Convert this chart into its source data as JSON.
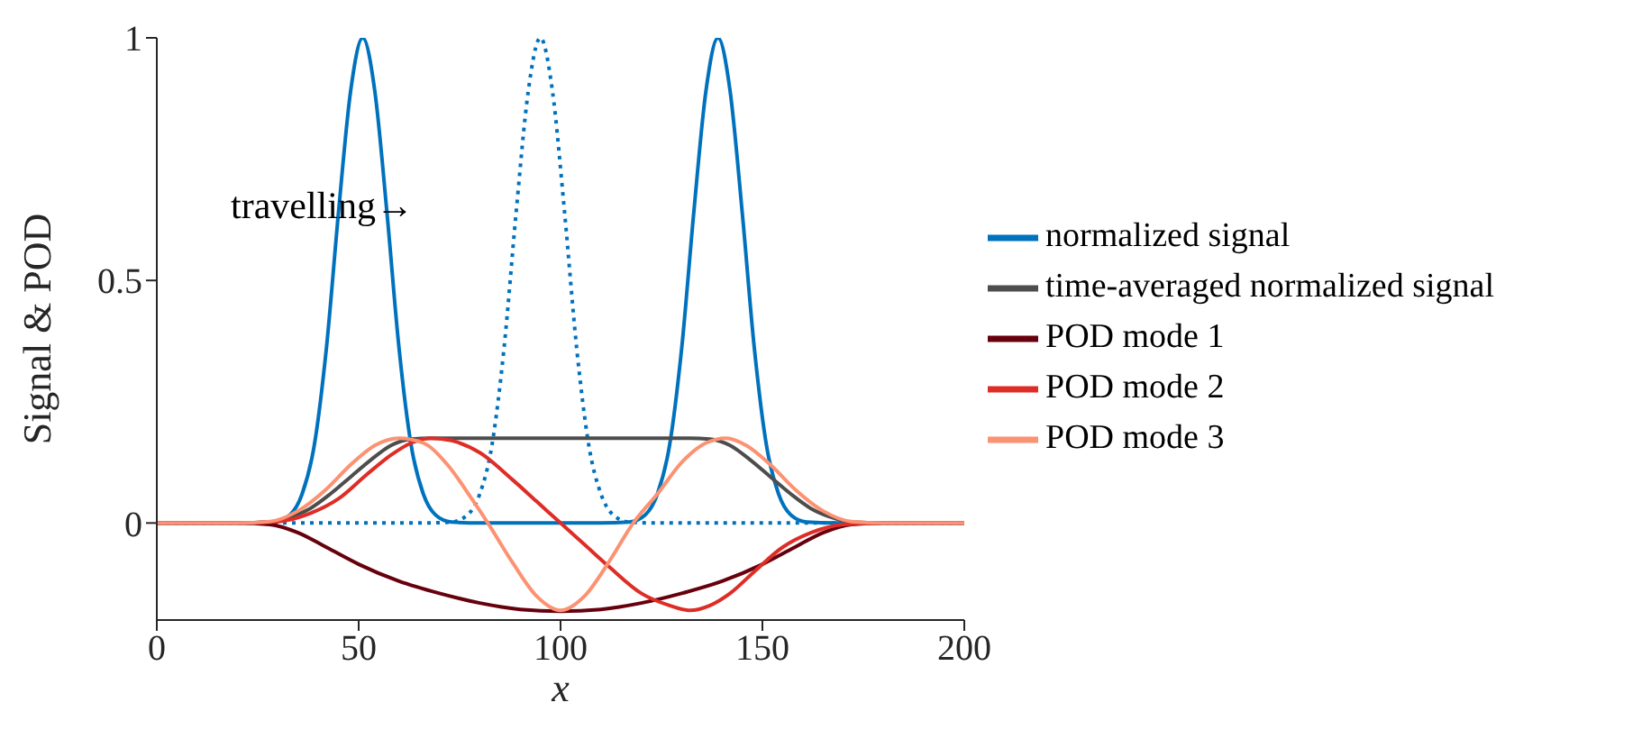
{
  "chart_data": {
    "type": "line",
    "xlabel": "x",
    "ylabel": "Signal & POD",
    "xlim": [
      0,
      200
    ],
    "xticks": [
      0,
      50,
      100,
      150,
      200
    ],
    "ylim": [
      -0.2,
      1
    ],
    "yticks": [
      0,
      0.5,
      1
    ],
    "grid": false,
    "legend": "right",
    "annotations": [
      "travelling→"
    ],
    "series": [
      {
        "name": "normalized signal",
        "color": "#0072bd",
        "x": [
          0,
          20,
          29,
          33,
          36,
          39,
          42,
          45,
          48,
          51,
          54,
          57,
          60,
          63,
          66,
          69,
          73,
          80,
          110,
          117,
          121,
          124,
          127,
          130,
          133,
          136,
          139,
          142,
          145,
          148,
          151,
          154,
          157,
          161,
          168,
          200
        ],
        "values": [
          0,
          0,
          0.002,
          0.017,
          0.06,
          0.16,
          0.36,
          0.64,
          0.89,
          1,
          0.89,
          0.64,
          0.36,
          0.16,
          0.06,
          0.017,
          0.002,
          0,
          0,
          0.002,
          0.017,
          0.06,
          0.16,
          0.36,
          0.64,
          0.89,
          1,
          0.89,
          0.64,
          0.36,
          0.16,
          0.06,
          0.017,
          0.002,
          0,
          0
        ]
      },
      {
        "color": "#0072bd",
        "line_style": "dotted",
        "x": [
          0,
          66,
          73,
          77,
          80,
          83,
          86,
          89,
          92,
          95,
          98,
          101,
          104,
          107,
          110,
          113,
          117,
          124,
          200
        ],
        "values": [
          0,
          0,
          0.002,
          0.017,
          0.06,
          0.16,
          0.36,
          0.64,
          0.89,
          1,
          0.89,
          0.64,
          0.36,
          0.16,
          0.06,
          0.017,
          0.002,
          0,
          0
        ]
      },
      {
        "name": "time-averaged normalized signal",
        "color": "#4d4d4d",
        "x": [
          0,
          20,
          28,
          33,
          38,
          43,
          48,
          53,
          58,
          63,
          68,
          132,
          137,
          142,
          147,
          152,
          157,
          162,
          167,
          172,
          180,
          200
        ],
        "values": [
          0,
          0,
          0.002,
          0.012,
          0.03,
          0.06,
          0.095,
          0.13,
          0.16,
          0.173,
          0.175,
          0.175,
          0.173,
          0.16,
          0.13,
          0.095,
          0.06,
          0.03,
          0.012,
          0.002,
          0,
          0
        ]
      },
      {
        "name": "POD mode 1",
        "color": "#67000d",
        "x": [
          0,
          20,
          28,
          35,
          42,
          50,
          60,
          70,
          80,
          90,
          100,
          110,
          120,
          130,
          140,
          150,
          158,
          165,
          172,
          180,
          200
        ],
        "values": [
          0,
          0,
          -0.003,
          -0.02,
          -0.05,
          -0.085,
          -0.12,
          -0.145,
          -0.165,
          -0.178,
          -0.182,
          -0.178,
          -0.165,
          -0.145,
          -0.12,
          -0.085,
          -0.05,
          -0.02,
          -0.003,
          0,
          0
        ]
      },
      {
        "name": "POD mode 2",
        "color": "#de2d26",
        "x": [
          0,
          20,
          30,
          38,
          45,
          52,
          58,
          63,
          68,
          73,
          80,
          88,
          94,
          100,
          106,
          112,
          120,
          127,
          132,
          137,
          142,
          148,
          155,
          162,
          170,
          180,
          200
        ],
        "values": [
          0,
          0,
          0.003,
          0.02,
          0.05,
          0.1,
          0.14,
          0.165,
          0.175,
          0.17,
          0.145,
          0.09,
          0.045,
          0,
          -0.045,
          -0.09,
          -0.145,
          -0.17,
          -0.18,
          -0.17,
          -0.145,
          -0.1,
          -0.05,
          -0.02,
          -0.003,
          0,
          0
        ]
      },
      {
        "name": "POD mode 3",
        "color": "#fc9272",
        "x": [
          0,
          20,
          28,
          35,
          42,
          48,
          54,
          60,
          66,
          72,
          78,
          82,
          88,
          94,
          100,
          106,
          112,
          118,
          124,
          130,
          136,
          141,
          146,
          152,
          158,
          165,
          172,
          180,
          200
        ],
        "values": [
          0,
          0,
          0.003,
          0.025,
          0.07,
          0.12,
          0.16,
          0.175,
          0.165,
          0.12,
          0.05,
          0,
          -0.08,
          -0.15,
          -0.18,
          -0.15,
          -0.08,
          0,
          0.06,
          0.125,
          0.165,
          0.175,
          0.16,
          0.12,
          0.07,
          0.025,
          0.003,
          0,
          0
        ]
      }
    ]
  }
}
